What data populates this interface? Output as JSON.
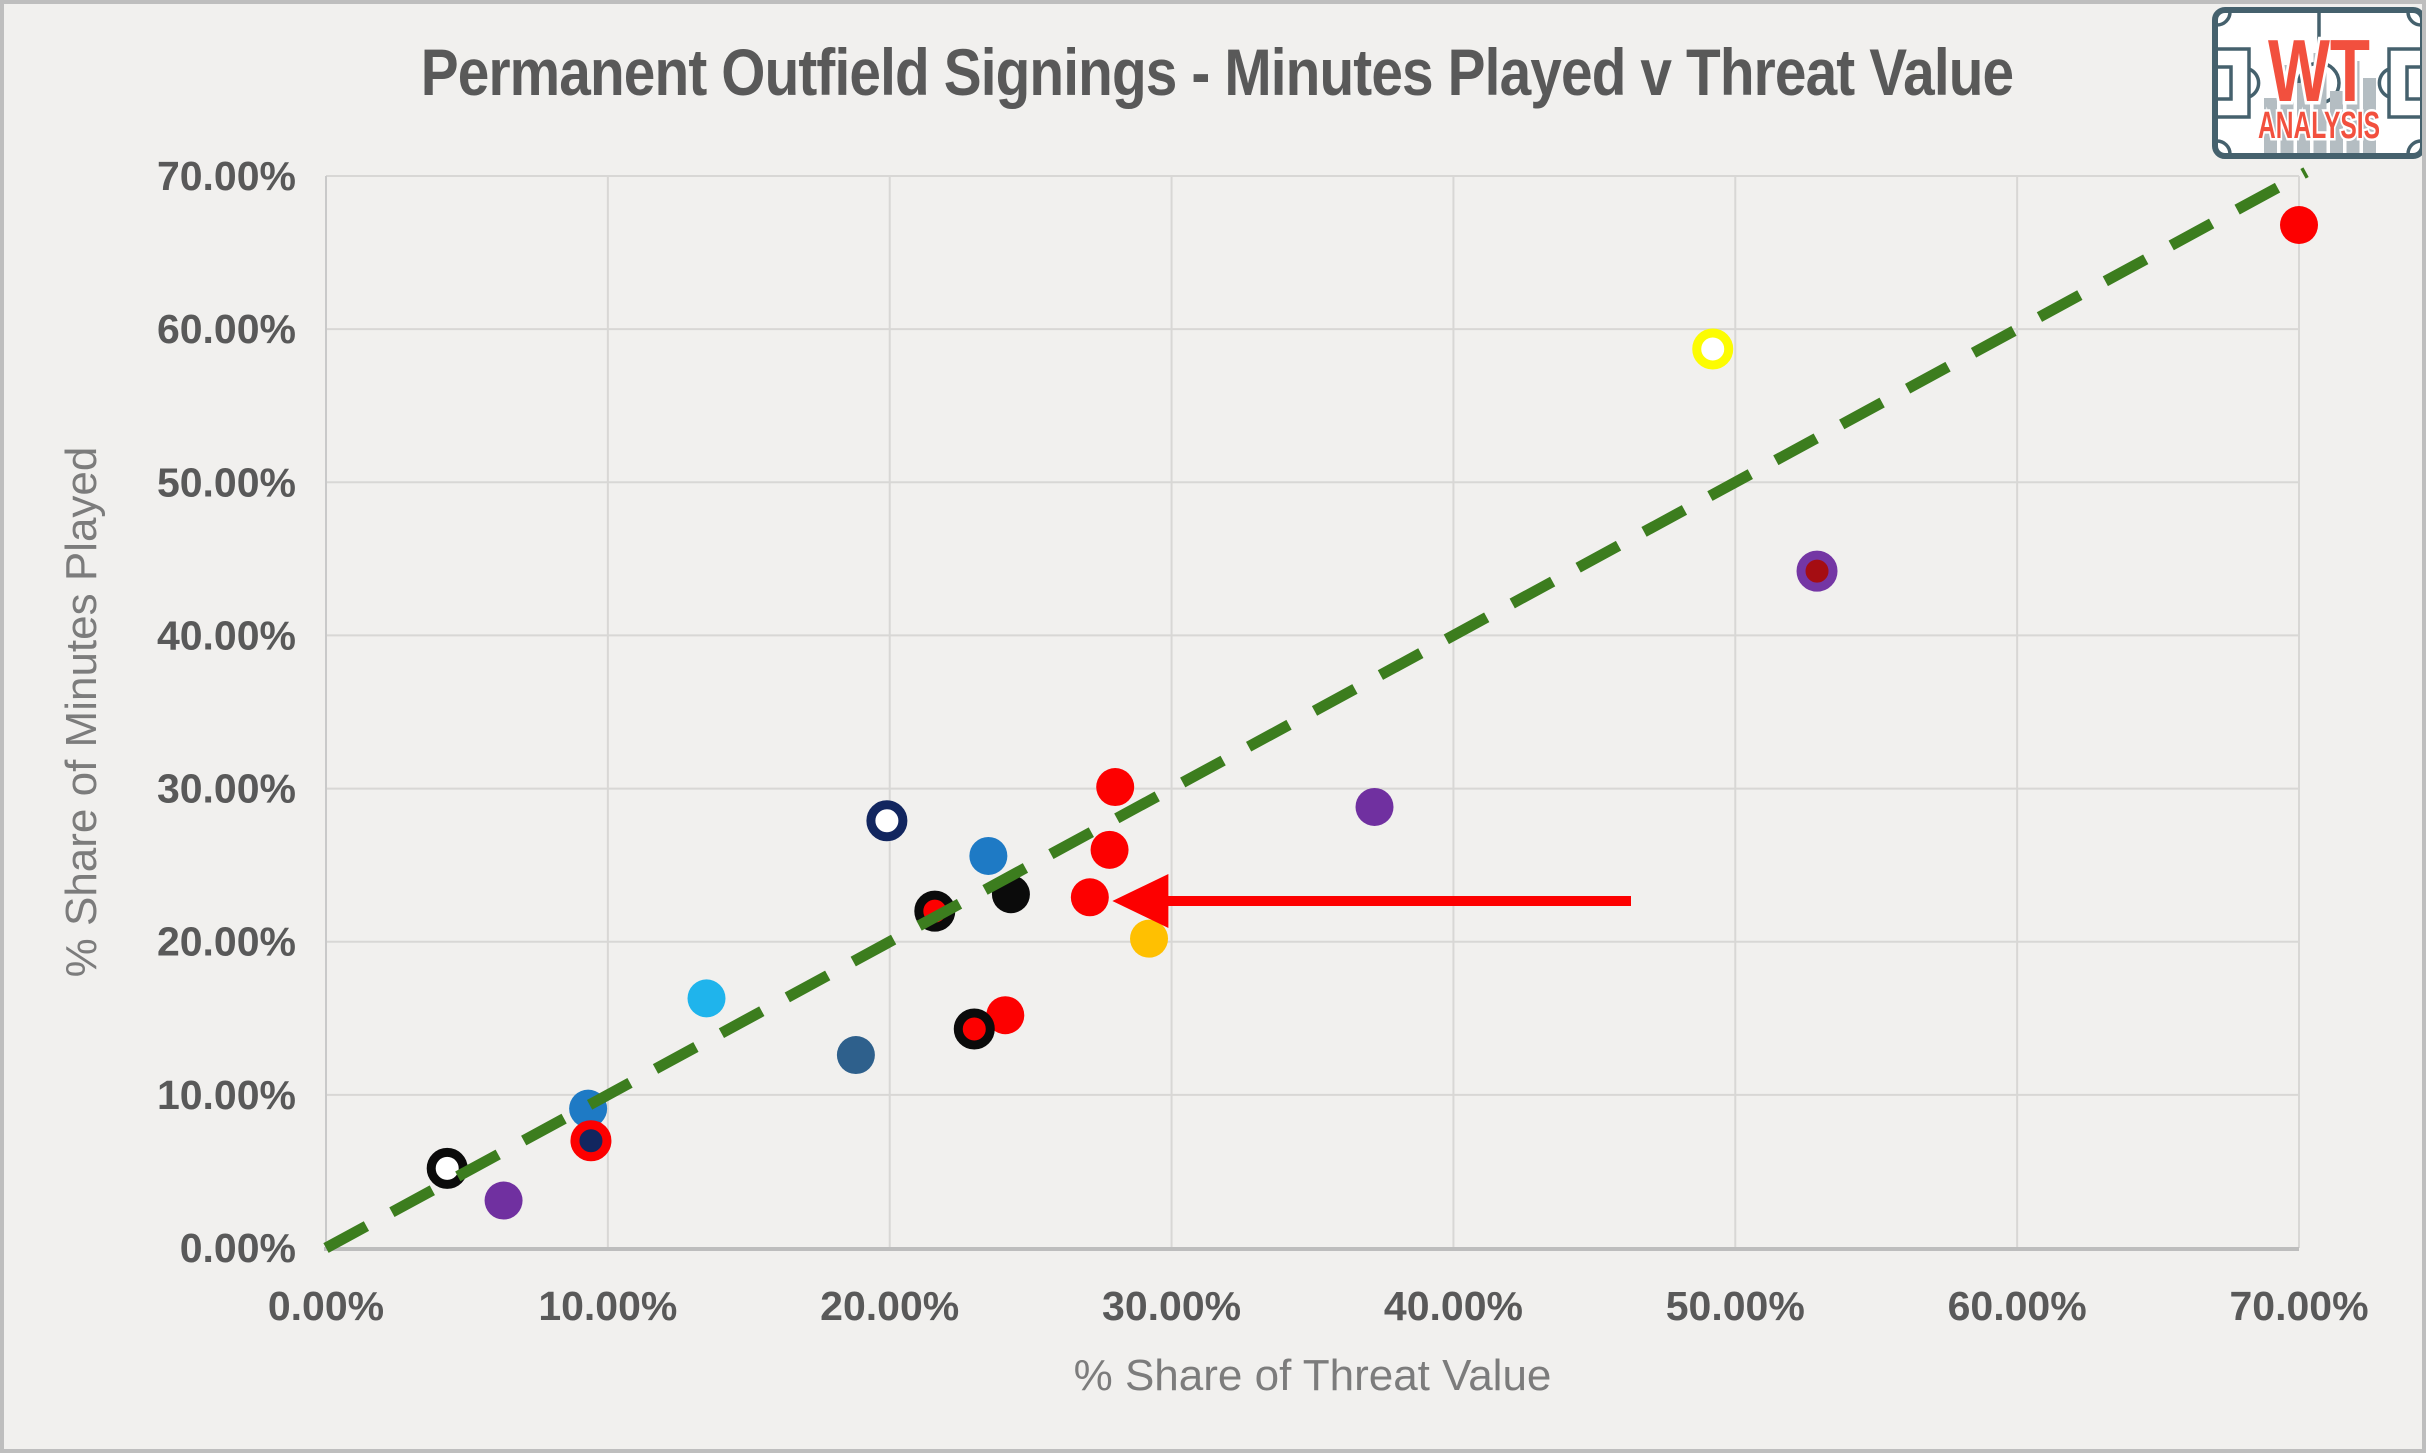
{
  "logo": {
    "line1": "WT",
    "line2": "ANALYSIS",
    "accent_color": "#F2503E",
    "pitch_color": "#45616D",
    "bar_color": "#B4BDC2"
  },
  "chart_data": {
    "type": "scatter",
    "title": "Permanent Outfield Signings - Minutes Played v Threat Value",
    "xlabel": "% Share of Threat Value",
    "ylabel": "% Share of Minutes Played",
    "xlim": [
      0,
      70
    ],
    "ylim": [
      0,
      70
    ],
    "grid": true,
    "x_ticks": [
      {
        "value": 0,
        "label": "0.00%"
      },
      {
        "value": 10,
        "label": "10.00%"
      },
      {
        "value": 20,
        "label": "20.00%"
      },
      {
        "value": 30,
        "label": "30.00%"
      },
      {
        "value": 40,
        "label": "40.00%"
      },
      {
        "value": 50,
        "label": "50.00%"
      },
      {
        "value": 60,
        "label": "60.00%"
      },
      {
        "value": 70,
        "label": "70.00%"
      }
    ],
    "y_ticks": [
      {
        "value": 0,
        "label": "0.00%"
      },
      {
        "value": 10,
        "label": "10.00%"
      },
      {
        "value": 20,
        "label": "20.00%"
      },
      {
        "value": 30,
        "label": "30.00%"
      },
      {
        "value": 40,
        "label": "40.00%"
      },
      {
        "value": 50,
        "label": "50.00%"
      },
      {
        "value": 60,
        "label": "60.00%"
      },
      {
        "value": 70,
        "label": "70.00%"
      }
    ],
    "reference_line": {
      "style": "dashed",
      "color": "#3C7D1E",
      "from": [
        0,
        0
      ],
      "to": [
        70.25,
        70.25
      ]
    },
    "annotation_arrow": {
      "color": "#FD0000",
      "direction": "left",
      "from_x": 46.3,
      "to_x": 27.9,
      "y": 22.66
    },
    "points": [
      {
        "x": 70.0,
        "y": 66.8,
        "fill": "#FD0000"
      },
      {
        "x": 49.2,
        "y": 58.7,
        "fill": "#FFFFFF",
        "ring": "#FCFC02"
      },
      {
        "x": 52.9,
        "y": 44.2,
        "fill": "#A50D12",
        "ring": "#7436A4"
      },
      {
        "x": 37.2,
        "y": 28.8,
        "fill": "#7030A0"
      },
      {
        "x": 28.0,
        "y": 30.1,
        "fill": "#FD0000"
      },
      {
        "x": 27.8,
        "y": 26.0,
        "fill": "#FD0000"
      },
      {
        "x": 27.1,
        "y": 22.9,
        "fill": "#FD0000"
      },
      {
        "x": 19.9,
        "y": 27.9,
        "fill": "#FFFFFF",
        "ring": "#12265F"
      },
      {
        "x": 23.5,
        "y": 25.6,
        "fill": "#1E7AC5"
      },
      {
        "x": 24.3,
        "y": 23.1,
        "fill": "#0B0B0B"
      },
      {
        "x": 21.6,
        "y": 22.0,
        "fill": "#FD0000",
        "ring": "#0B0B0B"
      },
      {
        "x": 29.2,
        "y": 20.2,
        "fill": "#FFC001"
      },
      {
        "x": 13.5,
        "y": 16.3,
        "fill": "#1FB4EC"
      },
      {
        "x": 18.8,
        "y": 12.6,
        "fill": "#2E608C"
      },
      {
        "x": 24.1,
        "y": 15.2,
        "fill": "#FD0000"
      },
      {
        "x": 23.0,
        "y": 14.3,
        "fill": "#FD0000",
        "ring": "#0B0B0B"
      },
      {
        "x": 9.3,
        "y": 9.1,
        "fill": "#1E7AC5"
      },
      {
        "x": 9.4,
        "y": 7.0,
        "fill": "#12265F",
        "ring": "#FD0000"
      },
      {
        "x": 4.3,
        "y": 5.2,
        "fill": "#FFFFFF",
        "ring": "#0B0B0B"
      },
      {
        "x": 6.3,
        "y": 3.1,
        "fill": "#7030A0"
      }
    ]
  }
}
